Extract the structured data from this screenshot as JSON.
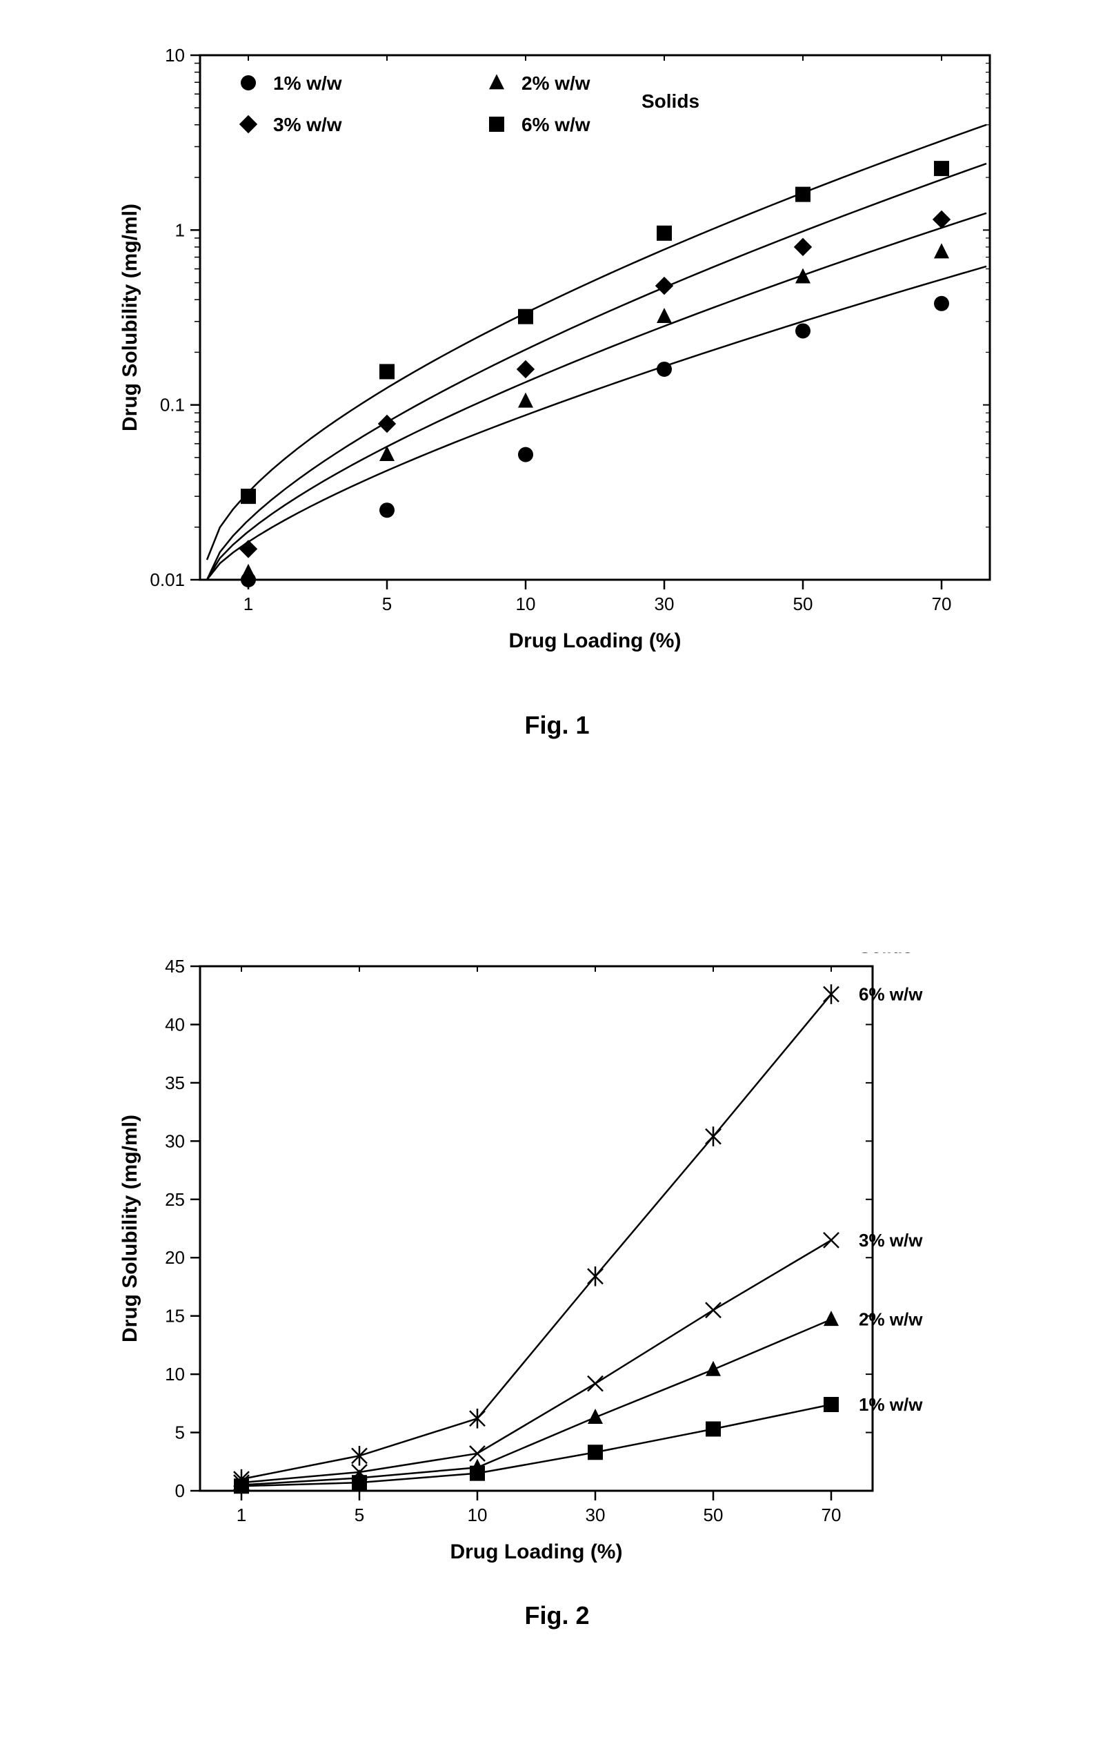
{
  "fig1": {
    "type": "scatter-log",
    "caption": "Fig. 1",
    "xlabel": "Drug Loading (%)",
    "ylabel": "Drug Solubility (mg/ml)",
    "axis_label_fontsize": 30,
    "tick_fontsize": 26,
    "legend_fontsize": 28,
    "x_categories": [
      "1",
      "5",
      "10",
      "30",
      "50",
      "70"
    ],
    "x_positions": [
      0,
      1,
      2,
      3,
      4,
      5
    ],
    "y_log_min": 0.01,
    "y_log_max": 10,
    "y_ticks": [
      0.01,
      0.1,
      1,
      10
    ],
    "y_tick_labels": [
      "0.01",
      "0.1",
      "1",
      "10"
    ],
    "background_color": "#ffffff",
    "axis_color": "#000000",
    "line_color": "#000000",
    "line_width": 2.5,
    "marker_size": 11,
    "legend_title": "Solids",
    "series": [
      {
        "label": "1% w/w",
        "marker": "circle",
        "color": "#000000",
        "values": [
          0.01,
          0.025,
          0.052,
          0.16,
          0.265,
          0.38
        ]
      },
      {
        "label": "2% w/w",
        "marker": "triangle",
        "color": "#000000",
        "values": [
          0.011,
          0.052,
          0.105,
          0.32,
          0.54,
          0.75
        ]
      },
      {
        "label": "3% w/w",
        "marker": "diamond",
        "color": "#000000",
        "values": [
          0.015,
          0.078,
          0.16,
          0.48,
          0.8,
          1.15
        ]
      },
      {
        "label": "6% w/w",
        "marker": "square",
        "color": "#000000",
        "values": [
          0.03,
          0.155,
          0.32,
          0.96,
          1.6,
          2.25
        ]
      }
    ],
    "curves": [
      {
        "y_start": 0.01,
        "y_end": 0.62
      },
      {
        "y_start": 0.01,
        "y_end": 1.25
      },
      {
        "y_start": 0.01,
        "y_end": 2.4
      },
      {
        "y_start": 0.013,
        "y_end": 4.0
      }
    ]
  },
  "fig2": {
    "type": "line",
    "caption": "Fig. 2",
    "xlabel": "Drug Loading (%)",
    "ylabel": "Drug Solubility (mg/ml)",
    "axis_label_fontsize": 30,
    "tick_fontsize": 26,
    "label_fontsize": 26,
    "x_categories": [
      "1",
      "5",
      "10",
      "30",
      "50",
      "70"
    ],
    "x_positions": [
      0,
      1,
      2,
      3,
      4,
      5
    ],
    "ylim": [
      0,
      45
    ],
    "ytick_step": 5,
    "background_color": "#ffffff",
    "axis_color": "#000000",
    "line_color": "#000000",
    "line_width": 2.5,
    "marker_size": 11,
    "side_label_title": "Solids",
    "series": [
      {
        "label": "6% w/w",
        "marker": "asterisk",
        "color": "#000000",
        "values": [
          1.0,
          3.0,
          6.2,
          18.4,
          30.4,
          42.6
        ]
      },
      {
        "label": "3% w/w",
        "marker": "x",
        "color": "#000000",
        "values": [
          0.7,
          1.6,
          3.2,
          9.2,
          15.5,
          21.5
        ]
      },
      {
        "label": "2% w/w",
        "marker": "triangle",
        "color": "#000000",
        "values": [
          0.5,
          1.1,
          2.0,
          6.3,
          10.4,
          14.7
        ]
      },
      {
        "label": "1% w/w",
        "marker": "square",
        "color": "#000000",
        "values": [
          0.4,
          0.7,
          1.5,
          3.3,
          5.3,
          7.4
        ]
      }
    ]
  }
}
